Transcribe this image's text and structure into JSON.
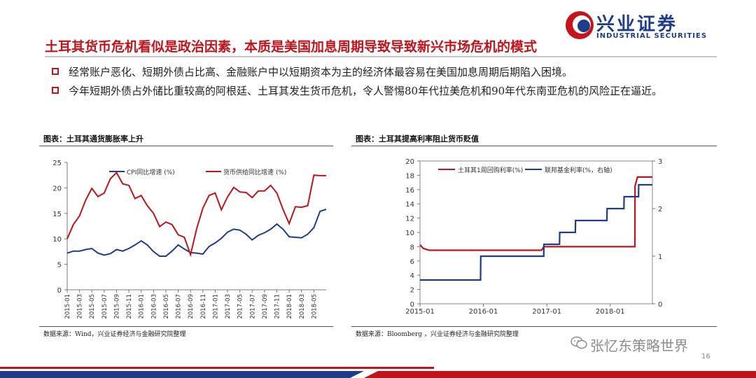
{
  "title": "土耳其货币危机看似是政治因素，本质是美国加息周期导致导致新兴市场危机的模式",
  "logo": {
    "cn": "兴业证券",
    "en": "INDUSTRIAL SECURITIES"
  },
  "bullets": [
    "经常账户恶化、短期外债占比高、金融账户中以短期资本为主的经济体最容易在美国加息周期后期陷入困境。",
    "今年短期外债占外储比重较高的阿根廷、土耳其发生货币危机，令人警惕80年代拉美危机和90年代东南亚危机的风险正在逼近。"
  ],
  "charts": {
    "left": {
      "title": "图表：土耳其通货膨胀率上升",
      "source": "数据来源：Wind，兴业证券经济与金融研究院整理"
    },
    "right": {
      "title": "图表：土耳其提高利率阻止货币贬值",
      "source": "数据来源：Bloomberg ，兴业证券经济与金融研究院整理"
    }
  },
  "watermark": "张忆东策略世界",
  "page_number": "16",
  "colors": {
    "red": "#c0141c",
    "navy": "#1f3c88",
    "grey": "#8c8c8c"
  },
  "chart_data": [
    {
      "type": "line",
      "x": [
        "2015-01",
        "2015-02",
        "2015-03",
        "2015-04",
        "2015-05",
        "2015-06",
        "2015-07",
        "2015-08",
        "2015-09",
        "2015-10",
        "2015-11",
        "2015-12",
        "2016-01",
        "2016-02",
        "2016-03",
        "2016-04",
        "2016-05",
        "2016-06",
        "2016-07",
        "2016-08",
        "2016-09",
        "2016-10",
        "2016-11",
        "2016-12",
        "2017-01",
        "2017-02",
        "2017-03",
        "2017-04",
        "2017-05",
        "2017-06",
        "2017-07",
        "2017-08",
        "2017-09",
        "2017-10",
        "2017-11",
        "2017-12",
        "2018-01",
        "2018-02",
        "2018-03",
        "2018-04",
        "2018-05",
        "2018-06",
        "2018-07"
      ],
      "x_tick_labels": [
        "2015-01",
        "2015-03",
        "2015-05",
        "2015-07",
        "2015-09",
        "2015-11",
        "2016-01",
        "2016-03",
        "2016-05",
        "2016-07",
        "2016-09",
        "2016-11",
        "2017-01",
        "2017-03",
        "2017-05",
        "2017-07",
        "2017-09",
        "2017-11",
        "2018-01",
        "2018-03",
        "2018-05"
      ],
      "series": [
        {
          "name": "CPI同比增速  (%)",
          "color": "#1f3c88",
          "values": [
            7.2,
            7.6,
            7.6,
            7.9,
            8.1,
            7.2,
            6.8,
            7.1,
            7.9,
            7.6,
            8.1,
            8.8,
            9.6,
            8.8,
            7.5,
            6.6,
            6.6,
            7.6,
            8.8,
            8.0,
            7.3,
            7.2,
            7.0,
            8.5,
            9.2,
            10.1,
            11.3,
            11.9,
            11.7,
            10.9,
            9.8,
            10.7,
            11.2,
            11.9,
            12.9,
            11.9,
            10.4,
            10.3,
            10.2,
            10.9,
            12.2,
            15.4,
            15.8
          ]
        },
        {
          "name": "货币供给同比增速  (%)",
          "color": "#c0141c",
          "values": [
            10.0,
            12.8,
            14.5,
            17.6,
            19.9,
            18.3,
            19.0,
            21.8,
            23.0,
            20.8,
            20.5,
            17.9,
            18.5,
            16.5,
            15.0,
            12.4,
            13.3,
            12.8,
            10.8,
            10.3,
            6.9,
            12.0,
            16.0,
            18.5,
            19.0,
            15.7,
            18.2,
            20.1,
            19.2,
            19.1,
            18.1,
            19.4,
            19.4,
            20.5,
            19.0,
            15.8,
            13.0,
            16.3,
            16.2,
            16.5,
            22.5,
            22.4,
            22.4
          ]
        }
      ],
      "ylim": [
        0,
        25
      ],
      "y_ticks": [
        0,
        5,
        10,
        15,
        20,
        25
      ],
      "legend": "top"
    },
    {
      "type": "line",
      "x_range": [
        "2015-01-01",
        "2018-09-01"
      ],
      "x_tick_labels": [
        "2015-01",
        "2016-01",
        "2017-01",
        "2018-01"
      ],
      "series": [
        {
          "name": "土耳其1周回购利率(%)",
          "color": "#c0141c",
          "axis": "left",
          "points": [
            [
              "2015-01-01",
              8.25
            ],
            [
              "2015-01-20",
              7.75
            ],
            [
              "2015-02-24",
              7.5
            ],
            [
              "2016-12-01",
              7.5
            ],
            [
              "2016-12-15",
              8.0
            ],
            [
              "2018-05-23",
              8.0
            ],
            [
              "2018-05-24",
              16.5
            ],
            [
              "2018-06-07",
              17.75
            ],
            [
              "2018-08-31",
              17.75
            ]
          ]
        },
        {
          "name": "联邦基金利率(%，右轴)",
          "color": "#1f3c88",
          "axis": "right",
          "points": [
            [
              "2015-01-01",
              0.5
            ],
            [
              "2015-12-16",
              0.5
            ],
            [
              "2015-12-17",
              1.0
            ],
            [
              "2016-12-14",
              1.0
            ],
            [
              "2016-12-15",
              1.25
            ],
            [
              "2017-03-15",
              1.25
            ],
            [
              "2017-03-16",
              1.5
            ],
            [
              "2017-06-14",
              1.5
            ],
            [
              "2017-06-15",
              1.75
            ],
            [
              "2017-12-13",
              1.75
            ],
            [
              "2017-12-14",
              2.0
            ],
            [
              "2018-03-21",
              2.0
            ],
            [
              "2018-03-22",
              2.25
            ],
            [
              "2018-06-13",
              2.25
            ],
            [
              "2018-06-14",
              2.5
            ],
            [
              "2018-08-31",
              2.5
            ]
          ]
        }
      ],
      "ylim_left": [
        0,
        20
      ],
      "y_ticks_left": [
        0,
        2,
        4,
        6,
        8,
        10,
        12,
        14,
        16,
        18,
        20
      ],
      "ylim_right": [
        0,
        3
      ],
      "y_ticks_right": [
        0,
        1,
        2,
        3
      ],
      "legend": "top"
    }
  ]
}
